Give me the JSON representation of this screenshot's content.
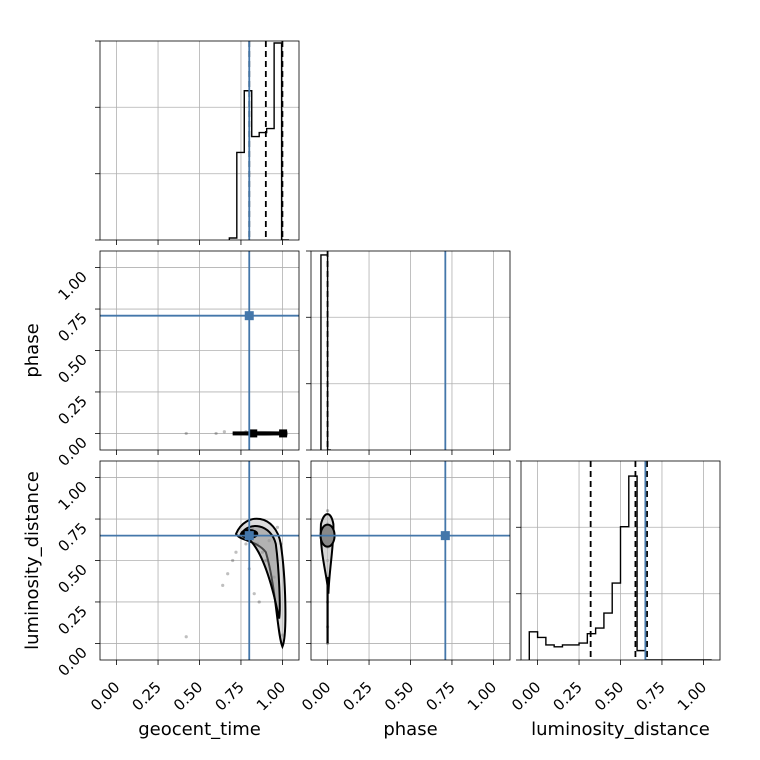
{
  "chart_data": {
    "type": "scatter",
    "title": "",
    "parameters": [
      "geocent_time",
      "phase",
      "luminosity_distance"
    ],
    "axis_range": [
      -0.1,
      1.1
    ],
    "tick_labels": [
      "0.00",
      "0.25",
      "0.50",
      "0.75",
      "1.00"
    ],
    "tick_values": [
      0,
      0.25,
      0.5,
      0.75,
      1.0
    ],
    "grid": true,
    "truth_color": "#4477aa",
    "truths": {
      "geocent_time": 0.8,
      "phase": 0.71,
      "luminosity_distance": 0.65
    },
    "histograms": {
      "geocent_time": {
        "edges": [
          0.68,
          0.725,
          0.77,
          0.815,
          0.86,
          0.905,
          0.95,
          0.995,
          1.04
        ],
        "counts": [
          0.01,
          0.44,
          0.75,
          0.52,
          0.54,
          0.56,
          0.99,
          0.0
        ],
        "quantiles": [
          0.8,
          0.9,
          1.0
        ],
        "max": 1.0
      },
      "phase": {
        "edges": [
          -0.04,
          -0.02,
          0.0,
          0.02
        ],
        "counts": [
          1.0,
          1.0,
          0.0
        ],
        "quantiles": [
          0.0
        ],
        "max": 1.02
      },
      "luminosity_distance": {
        "edges": [
          -0.05,
          0.0,
          0.05,
          0.1,
          0.15,
          0.2,
          0.25,
          0.3,
          0.35,
          0.4,
          0.45,
          0.5,
          0.55,
          0.6,
          0.65,
          0.7,
          0.75,
          0.8,
          0.85,
          0.9,
          0.95,
          1.0,
          1.05
        ],
        "counts": [
          0.15,
          0.12,
          0.08,
          0.07,
          0.08,
          0.08,
          0.09,
          0.14,
          0.17,
          0.25,
          0.41,
          0.71,
          0.98,
          0.05,
          0.0,
          0.0,
          0.0,
          0.0,
          0.0,
          0.0,
          0.0,
          0.0
        ],
        "quantiles": [
          0.32,
          0.59,
          0.66
        ],
        "max": 1.06
      }
    },
    "scatter_samples": {
      "geocent_time_vs_phase": [
        [
          0.72,
          0.0
        ],
        [
          0.75,
          0.0
        ],
        [
          0.78,
          0.01
        ],
        [
          0.82,
          0.0
        ],
        [
          0.86,
          0.0
        ],
        [
          0.9,
          0.0
        ],
        [
          0.94,
          0.0
        ],
        [
          0.98,
          0.0
        ],
        [
          1.0,
          0.0
        ],
        [
          0.6,
          0.0
        ],
        [
          0.42,
          0.0
        ],
        [
          0.65,
          0.01
        ]
      ],
      "geocent_time_vs_luminosity_distance": [
        [
          0.75,
          0.65
        ],
        [
          0.78,
          0.68
        ],
        [
          0.82,
          0.7
        ],
        [
          0.85,
          0.6
        ],
        [
          0.88,
          0.55
        ],
        [
          0.9,
          0.5
        ],
        [
          0.95,
          0.4
        ],
        [
          0.98,
          0.2
        ],
        [
          1.0,
          0.05
        ],
        [
          0.8,
          0.45
        ],
        [
          0.83,
          0.3
        ],
        [
          0.86,
          0.25
        ],
        [
          0.78,
          0.6
        ],
        [
          0.72,
          0.55
        ],
        [
          0.7,
          0.5
        ],
        [
          0.67,
          0.42
        ],
        [
          0.64,
          0.35
        ],
        [
          0.42,
          0.04
        ],
        [
          0.92,
          0.62
        ],
        [
          0.97,
          0.7
        ],
        [
          0.99,
          0.6
        ]
      ],
      "phase_vs_luminosity_distance": [
        [
          0.0,
          0.8
        ],
        [
          0.0,
          0.72
        ],
        [
          0.0,
          0.65
        ],
        [
          0.0,
          0.58
        ],
        [
          0.0,
          0.5
        ],
        [
          0.0,
          0.4
        ],
        [
          0.0,
          0.25
        ],
        [
          0.0,
          0.1
        ],
        [
          0.0,
          0.0
        ],
        [
          -0.02,
          0.7
        ],
        [
          0.02,
          0.62
        ]
      ]
    }
  }
}
